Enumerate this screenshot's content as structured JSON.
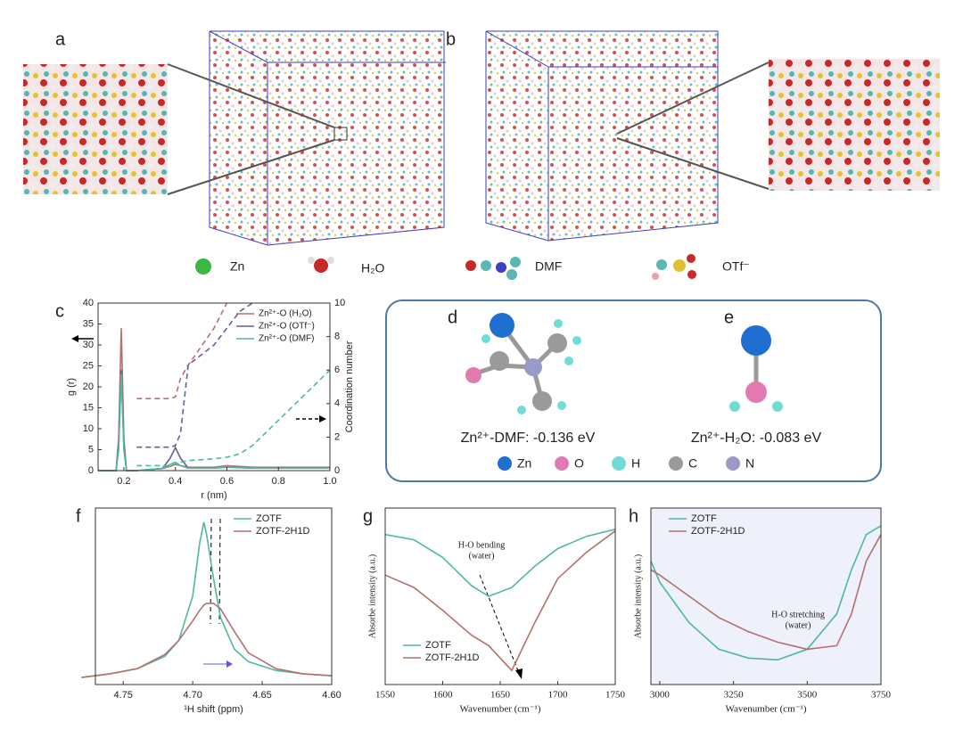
{
  "panel_labels": [
    "a",
    "b",
    "c",
    "d",
    "e",
    "f",
    "g",
    "h"
  ],
  "species_legend": [
    "Zn",
    "H₂O",
    "DMF",
    "OTf⁻"
  ],
  "binding": {
    "dmf": "Zn²⁺-DMF: -0.136 eV",
    "water": "Zn²⁺-H₂O: -0.083 eV",
    "elements": [
      {
        "name": "Zn",
        "color": "#1f6fd1"
      },
      {
        "name": "O",
        "color": "#e07ab0"
      },
      {
        "name": "H",
        "color": "#6fdcd6"
      },
      {
        "name": "C",
        "color": "#9a9a9a"
      },
      {
        "name": "N",
        "color": "#9a9ac8"
      }
    ]
  },
  "chart_data": [
    {
      "type": "line",
      "xlabel": "r (nm)",
      "ylabel": "g (r)",
      "y2label": "Coordination number",
      "xlim": [
        0.1,
        1.0
      ],
      "xticks": [
        0.2,
        0.4,
        0.6,
        0.8,
        {
          "value": 1.0,
          "label": "1.0"
        }
      ],
      "ylim": [
        0,
        40
      ],
      "yticks": [
        0,
        5,
        10,
        15,
        20,
        25,
        30,
        35,
        40
      ],
      "y2lim": [
        0,
        10
      ],
      "y2ticks": [
        0,
        2,
        4,
        6,
        8,
        10
      ],
      "legend": "upper right",
      "x": [
        0.1,
        0.17,
        0.18,
        0.19,
        0.2,
        0.21,
        0.25,
        0.35,
        0.38,
        0.4,
        0.42,
        0.45,
        0.55,
        0.6,
        0.65,
        0.7,
        1.0
      ],
      "series": [
        {
          "name": "Zn²⁺-O (H₂O)",
          "color": "#b5706e",
          "values": [
            0,
            0,
            8,
            34,
            8,
            0,
            0,
            0.5,
            1,
            1.5,
            1.2,
            0.8,
            0.8,
            1.2,
            1,
            0.8,
            0.8
          ]
        },
        {
          "name": "Zn²⁺-O (OTf⁻)",
          "color": "#6b5b9a",
          "values": [
            0,
            0,
            6,
            24,
            6,
            0,
            0,
            0.5,
            3,
            5.5,
            3,
            0.6,
            0.6,
            0.8,
            0.7,
            0.6,
            0.6
          ]
        },
        {
          "name": "Zn²⁺-O (DMF)",
          "color": "#4fb8a0",
          "values": [
            0,
            0,
            5,
            23,
            5,
            0,
            0,
            0.5,
            1.5,
            2,
            1.2,
            0.6,
            0.6,
            0.9,
            0.7,
            0.6,
            0.6
          ]
        },
        {
          "color": "#b5706e",
          "axis": "y2",
          "dash": true,
          "values": [
            null,
            null,
            null,
            null,
            null,
            null,
            4.3,
            4.3,
            4.3,
            4.4,
            5.5,
            6.3,
            8.5,
            10,
            null,
            null,
            null
          ]
        },
        {
          "color": "#6b5b9a",
          "axis": "y2",
          "dash": true,
          "values": [
            null,
            null,
            null,
            null,
            null,
            null,
            1.4,
            1.4,
            1.4,
            1.5,
            2.2,
            6.3,
            7.5,
            8.5,
            9.5,
            10,
            null
          ]
        },
        {
          "color": "#4fb8a0",
          "axis": "y2",
          "dash": true,
          "values": [
            null,
            null,
            null,
            null,
            null,
            null,
            0.3,
            0.3,
            0.3,
            0.4,
            0.5,
            0.6,
            0.7,
            0.8,
            1,
            1.5,
            6
          ]
        }
      ]
    },
    {
      "type": "line",
      "xlabel": "¹H shift (ppm)",
      "xlim": [
        4.77,
        4.6
      ],
      "xticks": [
        4.75,
        {
          "value": 4.7,
          "label": "4.70"
        },
        4.65,
        {
          "value": 4.6,
          "label": "4.60"
        }
      ],
      "ylim": [
        0,
        1
      ],
      "legend": "upper right",
      "x": [
        4.78,
        4.76,
        4.74,
        4.72,
        4.71,
        4.7,
        4.695,
        4.692,
        4.69,
        4.685,
        4.68,
        4.67,
        4.66,
        4.64,
        4.62,
        4.6
      ],
      "series": [
        {
          "name": "ZOTF",
          "color": "#4fb8a0",
          "values": [
            0.04,
            0.06,
            0.09,
            0.16,
            0.25,
            0.5,
            0.8,
            0.92,
            0.85,
            0.6,
            0.38,
            0.2,
            0.13,
            0.08,
            0.06,
            0.05
          ]
        },
        {
          "name": "ZOTF-2H1D",
          "color": "#b5706e",
          "values": [
            0.04,
            0.06,
            0.09,
            0.17,
            0.25,
            0.36,
            0.42,
            0.45,
            0.46,
            0.46,
            0.43,
            0.3,
            0.18,
            0.09,
            0.06,
            0.05
          ]
        }
      ]
    },
    {
      "type": "line",
      "xlabel": "Wavenumber (cm⁻¹)",
      "ylabel": "Absorbe intensity (a.u.)",
      "annotation": [
        "H-O bending",
        "(water)"
      ],
      "xlim": [
        1550,
        1750
      ],
      "xticks": [
        1550,
        1600,
        1650,
        1700,
        1750
      ],
      "ylim": [
        0,
        1
      ],
      "legend": "lower left",
      "x": [
        1550,
        1575,
        1600,
        1625,
        1640,
        1660,
        1680,
        1700,
        1725,
        1750
      ],
      "series": [
        {
          "name": "ZOTF",
          "color": "#4fb8a0",
          "values": [
            0.85,
            0.82,
            0.72,
            0.56,
            0.5,
            0.55,
            0.67,
            0.77,
            0.84,
            0.88
          ]
        },
        {
          "name": "ZOTF-2H1D",
          "color": "#b5706e",
          "values": [
            0.62,
            0.55,
            0.42,
            0.28,
            0.22,
            0.08,
            0.35,
            0.6,
            0.75,
            0.87
          ]
        }
      ]
    },
    {
      "type": "line",
      "xlabel": "Wavenumber (cm⁻¹)",
      "ylabel": "Absorbe intensity (a.u.)",
      "annotation": [
        "H-O stretching",
        "(water)"
      ],
      "background": "#eef0fa",
      "xlim": [
        2970,
        3750
      ],
      "xticks": [
        3000,
        3250,
        3500,
        3750
      ],
      "ylim": [
        0,
        1
      ],
      "legend": "upper left",
      "x": [
        2970,
        3000,
        3100,
        3200,
        3300,
        3400,
        3500,
        3600,
        3650,
        3700,
        3750
      ],
      "series": [
        {
          "name": "ZOTF",
          "color": "#4fb8a0",
          "values": [
            0.7,
            0.58,
            0.35,
            0.2,
            0.15,
            0.14,
            0.2,
            0.4,
            0.65,
            0.85,
            0.9
          ]
        },
        {
          "name": "ZOTF-2H1D",
          "color": "#b5706e",
          "values": [
            0.65,
            0.62,
            0.5,
            0.38,
            0.3,
            0.24,
            0.2,
            0.22,
            0.4,
            0.7,
            0.85
          ]
        }
      ]
    }
  ]
}
